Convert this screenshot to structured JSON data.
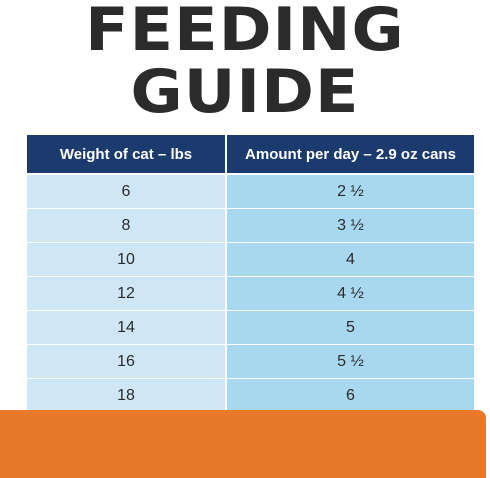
{
  "title": {
    "line1": "FEEDING",
    "line2": "GUIDE"
  },
  "table": {
    "headers": [
      "Weight of cat – lbs",
      "Amount per day – 2.9 oz cans"
    ],
    "rows": [
      [
        "6",
        "2 ½"
      ],
      [
        "8",
        "3 ½"
      ],
      [
        "10",
        "4"
      ],
      [
        "12",
        "4 ½"
      ],
      [
        "14",
        "5"
      ],
      [
        "16",
        "5 ½"
      ],
      [
        "18",
        "6"
      ]
    ]
  },
  "colors": {
    "header_bg": "#1b3b6e",
    "left_col_bg": "#cfe7f5",
    "right_col_bg": "#a7d8f0",
    "band": "#e8782a",
    "title_text": "#2b2b2b"
  }
}
